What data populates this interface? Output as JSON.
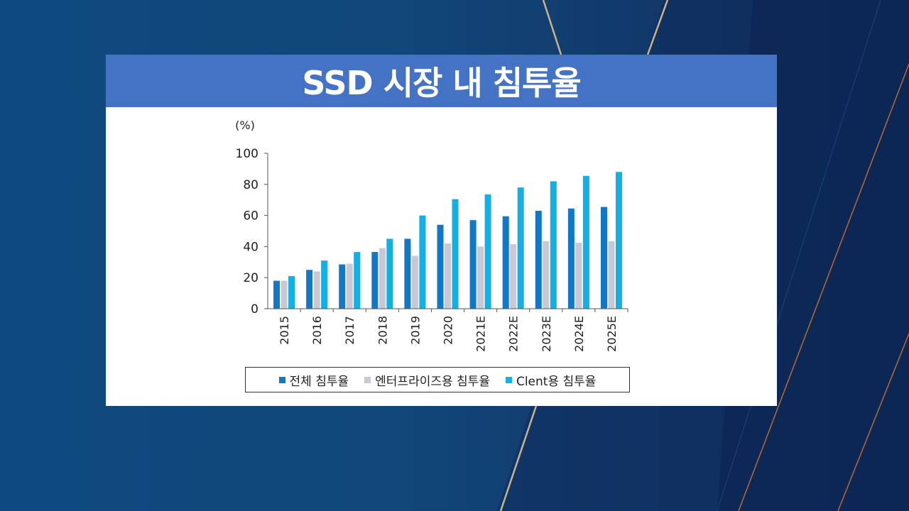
{
  "title": "SSD 시장 내 침투율",
  "colors": {
    "series": [
      "#1277c7",
      "#c8c9d4",
      "#14b0e3"
    ],
    "title_bar": "#4472c4"
  },
  "chart_data": {
    "type": "bar",
    "title": "SSD 시장 내 침투율",
    "unit_label": "(%)",
    "xlabel": "",
    "ylabel": "(%)",
    "ylim": [
      0,
      100
    ],
    "yticks": [
      0,
      20,
      40,
      60,
      80,
      100
    ],
    "grid": false,
    "legend_position": "bottom",
    "categories": [
      "2015",
      "2016",
      "2017",
      "2018",
      "2019",
      "2020",
      "2021E",
      "2022E",
      "2023E",
      "2024E",
      "2025E"
    ],
    "series": [
      {
        "name": "전체 침투율",
        "values": [
          18,
          25,
          28.5,
          36.5,
          45,
          54,
          57,
          59.5,
          63,
          64.5,
          65.5
        ]
      },
      {
        "name": "엔터프라이즈용 침투율",
        "values": [
          18,
          24,
          29,
          39,
          34,
          42,
          40,
          41.5,
          43.5,
          42.5,
          43.5
        ]
      },
      {
        "name": "Clent용 침투율",
        "values": [
          21,
          31,
          36.5,
          45,
          60,
          70.5,
          73.5,
          78,
          82,
          85.5,
          88
        ]
      }
    ]
  }
}
